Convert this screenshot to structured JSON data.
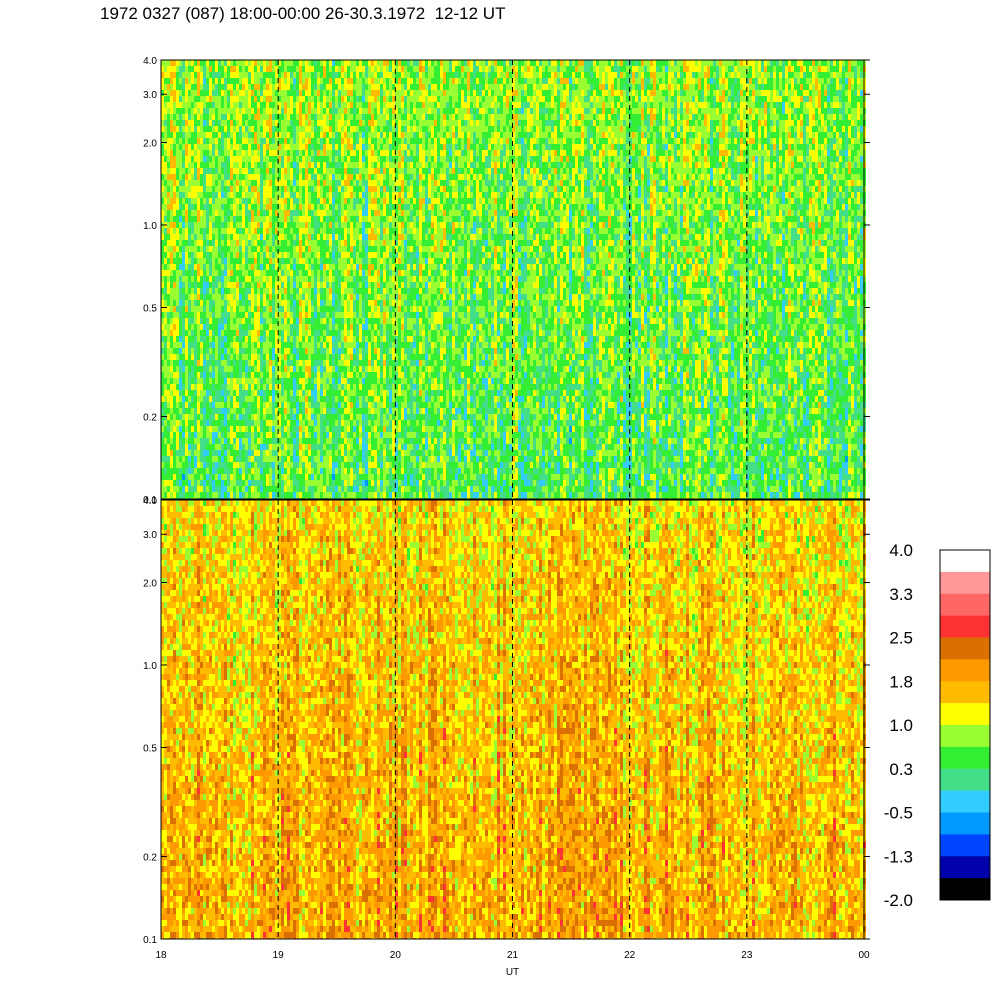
{
  "title": "1972 0327 (087) 18:00-00:00 26-30.3.1972  12-12 UT",
  "chart_data": {
    "type": "heatmap",
    "title": "1972 0327 (087) 18:00-00:00 26-30.3.1972  12-12 UT",
    "xlabel": "UT",
    "x_ticks": [
      "18",
      "19",
      "20",
      "21",
      "22",
      "23",
      "00"
    ],
    "x_range": [
      18,
      24
    ],
    "y_scale": "log",
    "panels": [
      {
        "name": "",
        "ylim": [
          0.1,
          4.0
        ],
        "y_ticks": [
          {
            "value": 0.1,
            "label": "0.1"
          },
          {
            "value": 0.2,
            "label": "0.2"
          },
          {
            "value": 0.5,
            "label": "0.5"
          },
          {
            "value": 1.0,
            "label": "1.0"
          },
          {
            "value": 2.0,
            "label": "2.0"
          },
          {
            "value": 3.0,
            "label": "3.0"
          },
          {
            "value": 4.0,
            "label": "4.0"
          }
        ],
        "typical_level": 0.6
      },
      {
        "name": "",
        "ylim": [
          0.1,
          4.0
        ],
        "y_ticks": [
          {
            "value": 0.1,
            "label": "0.1"
          },
          {
            "value": 0.2,
            "label": "0.2"
          },
          {
            "value": 0.5,
            "label": "0.5"
          },
          {
            "value": 1.0,
            "label": "1.0"
          },
          {
            "value": 2.0,
            "label": "2.0"
          },
          {
            "value": 3.0,
            "label": "3.0"
          },
          {
            "value": 4.0,
            "label": "4.0"
          }
        ],
        "typical_level": 1.6
      }
    ],
    "vertical_dashed_lines": [
      19,
      20,
      21,
      22,
      23
    ],
    "colorbar": {
      "labels": [
        "4.0",
        "3.3",
        "2.5",
        "1.8",
        "1.0",
        "0.3",
        "-0.5",
        "-1.3",
        "-2.0"
      ],
      "range": [
        -2.0,
        4.0
      ],
      "colors": [
        "#ffffff",
        "#ff9999",
        "#ff6666",
        "#ff3333",
        "#d97000",
        "#ff9900",
        "#ffbb00",
        "#ffff00",
        "#99ff33",
        "#33ee33",
        "#44dd88",
        "#33ccff",
        "#0099ff",
        "#0044ff",
        "#0000aa",
        "#000000"
      ]
    }
  }
}
